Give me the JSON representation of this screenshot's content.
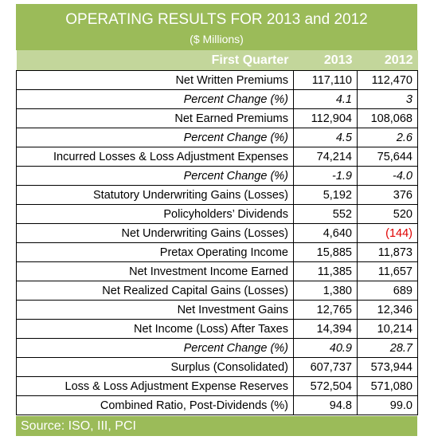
{
  "header": {
    "title": "OPERATING RESULTS FOR 2013 and 2012",
    "subtitle": "($ Millions)"
  },
  "table": {
    "columns": [
      "First Quarter",
      "2013",
      "2012"
    ],
    "rows": [
      [
        "Net Written Premiums",
        "117,110",
        "112,470"
      ],
      [
        "Percent Change (%)",
        "4.1",
        "3"
      ],
      [
        "Net Earned Premiums",
        "112,904",
        "108,068"
      ],
      [
        "Percent Change (%)",
        "4.5",
        "2.6"
      ],
      [
        "Incurred Losses & Loss Adjustment Expenses",
        "74,214",
        "75,644"
      ],
      [
        "Percent Change (%)",
        "-1.9",
        "-4.0"
      ],
      [
        "Statutory Underwriting Gains (Losses)",
        "5,192",
        "376"
      ],
      [
        "Policyholders’ Dividends",
        "552",
        "520"
      ],
      [
        "Net Underwriting Gains (Losses)",
        "4,640",
        "(144)"
      ],
      [
        "Pretax Operating Income",
        "15,885",
        "11,873"
      ],
      [
        "Net Investment Income Earned",
        "11,385",
        "11,657"
      ],
      [
        "Net Realized Capital Gains (Losses)",
        "1,380",
        "689"
      ],
      [
        "Net Investment Gains",
        "12,765",
        "12,346"
      ],
      [
        "Net Income (Loss) After Taxes",
        "14,394",
        "10,214"
      ],
      [
        "Percent Change (%)",
        "40.9",
        "28.7"
      ],
      [
        "Surplus (Consolidated)",
        "607,737",
        "573,944"
      ],
      [
        "Loss & Loss Adjustment Expense Reserves",
        "572,504",
        "571,080"
      ],
      [
        "Combined Ratio, Post-Dividends (%)",
        "94.8",
        "99.0"
      ]
    ]
  },
  "footer": {
    "source": "Source: ISO, III, PCI"
  }
}
